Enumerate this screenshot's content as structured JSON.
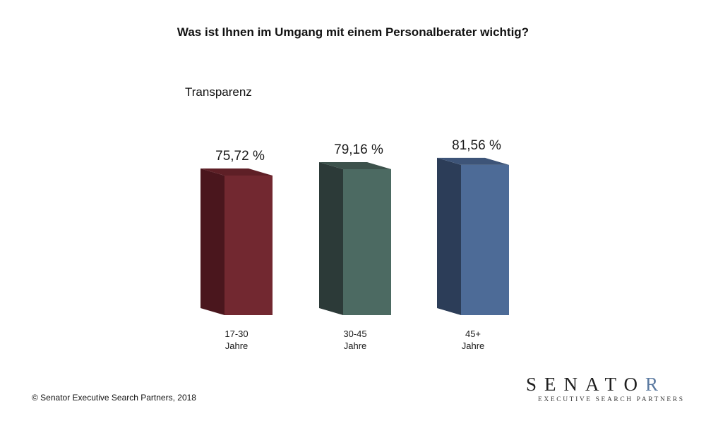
{
  "title": "Was ist Ihnen im Umgang mit einem Personalberater wichtig?",
  "subtitle": "Transparenz",
  "copyright": "© Senator Executive Search Partners, 2018",
  "logo": {
    "word_main": "SENATO",
    "word_last": "R",
    "tagline": "EXECUTIVE SEARCH PARTNERS"
  },
  "chart_data": {
    "type": "bar",
    "title": "Was ist Ihnen im Umgang mit einem Personalberater wichtig?",
    "subtitle": "Transparenz",
    "categories": [
      [
        "17-30",
        "Jahre"
      ],
      [
        "30-45",
        "Jahre"
      ],
      [
        "45+",
        "Jahre"
      ]
    ],
    "values": [
      75.72,
      79.16,
      81.56
    ],
    "value_labels": [
      "75,72 %",
      "79,16 %",
      "81,56 %"
    ],
    "colors": [
      {
        "front": "#722830",
        "side": "#4a161d",
        "top": "#5e1f26"
      },
      {
        "front": "#4c6a62",
        "side": "#2c3a38",
        "top": "#3d524c"
      },
      {
        "front": "#4d6b97",
        "side": "#2c3d58",
        "top": "#3d5478"
      }
    ],
    "style": "3d-column",
    "grid": false,
    "legend": "none"
  }
}
